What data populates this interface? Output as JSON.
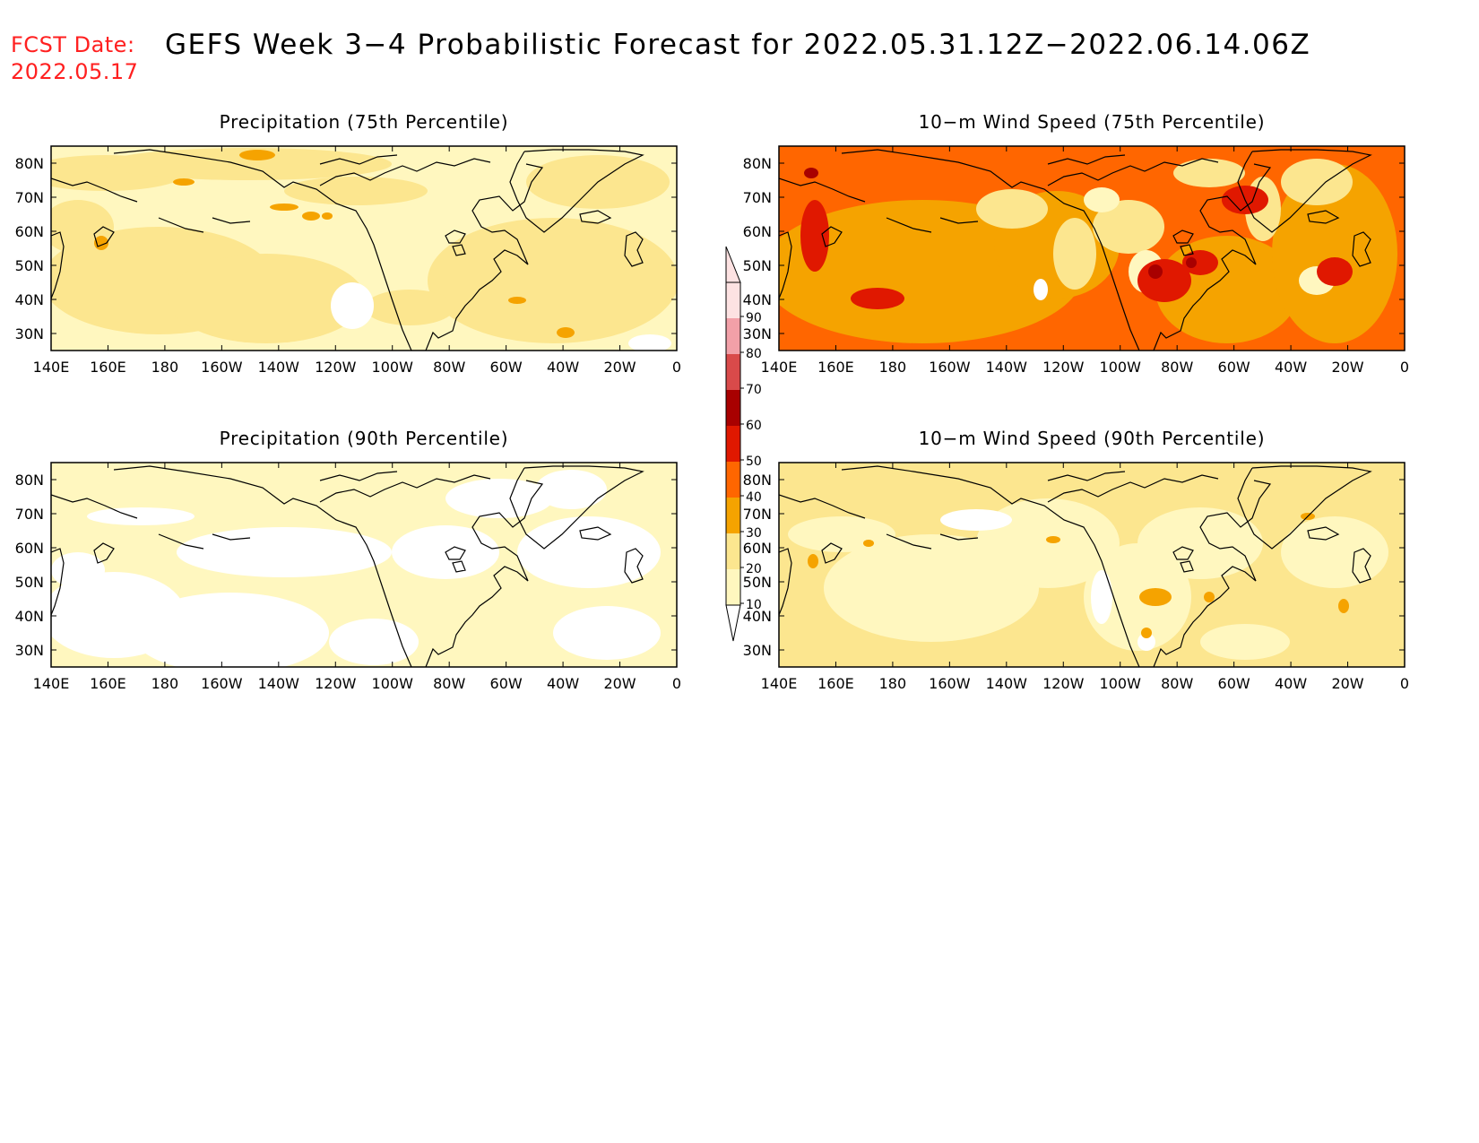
{
  "header": {
    "fcst_label": "FCST Date:",
    "fcst_date": "2022.05.17",
    "title": "GEFS Week 3−4 Probabilistic Forecast for 2022.05.31.12Z−2022.06.14.06Z"
  },
  "axes": {
    "lat_ticks": [
      "80N",
      "70N",
      "60N",
      "50N",
      "40N",
      "30N"
    ],
    "lon_ticks": [
      "140E",
      "160E",
      "180",
      "160W",
      "140W",
      "120W",
      "100W",
      "80W",
      "60W",
      "40W",
      "20W",
      "0"
    ]
  },
  "panels": [
    {
      "title": "Precipitation (75th Percentile)",
      "scheme": "p75"
    },
    {
      "title": "10−m Wind Speed (75th Percentile)",
      "scheme": "w75"
    },
    {
      "title": "Precipitation (90th Percentile)",
      "scheme": "p90"
    },
    {
      "title": "10−m Wind Speed (90th Percentile)",
      "scheme": "w90"
    }
  ],
  "colorbar": {
    "levels": [
      "90",
      "80",
      "70",
      "60",
      "50",
      "40",
      "30",
      "20",
      "10"
    ],
    "colors": {
      "lt10": "#ffffff",
      "10": "#fff7bf",
      "20": "#fce68f",
      "30": "#f5a300",
      "40": "#ff6600",
      "50": "#e01800",
      "60": "#a80000",
      "70": "#d94a4a",
      "80": "#f2a0a8",
      "90": "#fde2e2"
    }
  },
  "colors": {
    "accent_red": "#ff2020",
    "map_outline": "#000000"
  }
}
